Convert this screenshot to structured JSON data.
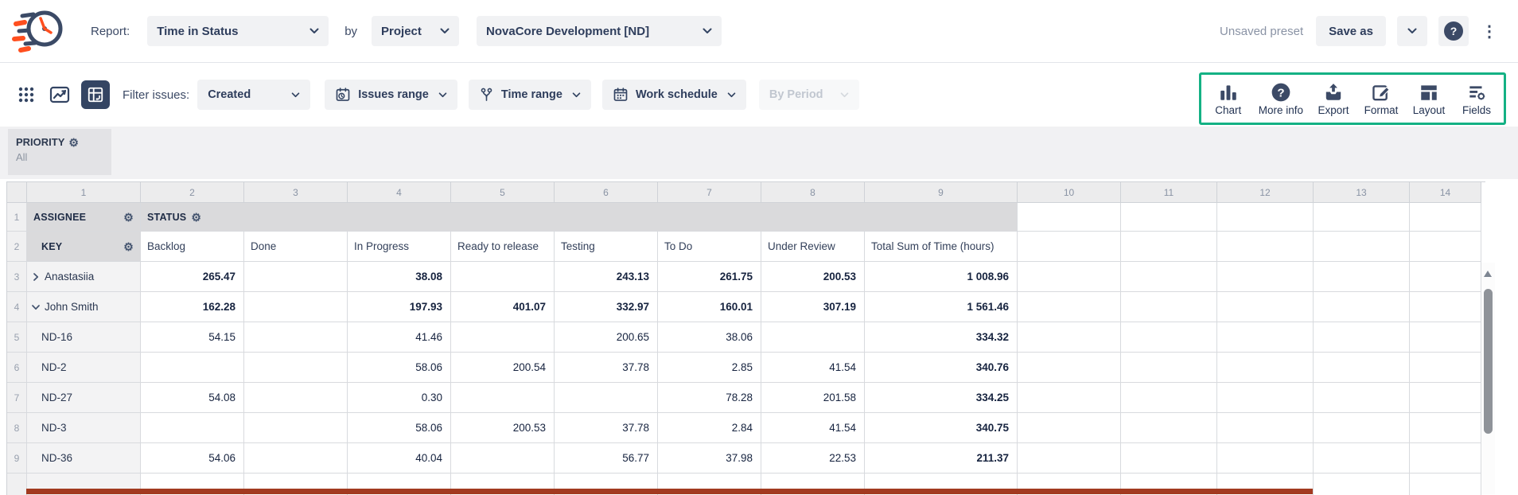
{
  "topbar": {
    "report_label": "Report:",
    "report_type_value": "Time in Status",
    "by_label": "by",
    "group_by_value": "Project",
    "project_value": "NovaCore Development [ND]",
    "preset_status": "Unsaved preset",
    "save_as_label": "Save as"
  },
  "toolbar": {
    "filter_label": "Filter issues:",
    "filter_value": "Created",
    "issues_range_label": "Issues range",
    "time_range_label": "Time range",
    "work_schedule_label": "Work schedule",
    "by_period_label": "By Period",
    "highlight_color": "#14b184",
    "actions": [
      {
        "label": "Chart",
        "icon": "bar-chart-icon"
      },
      {
        "label": "More info",
        "icon": "question-circle-icon"
      },
      {
        "label": "Export",
        "icon": "export-icon"
      },
      {
        "label": "Format",
        "icon": "format-icon"
      },
      {
        "label": "Layout",
        "icon": "layout-icon"
      },
      {
        "label": "Fields",
        "icon": "fields-icon"
      }
    ]
  },
  "priority": {
    "label": "PRIORITY",
    "value": "All"
  },
  "grid": {
    "column_numbers": [
      "1",
      "2",
      "3",
      "4",
      "5",
      "6",
      "7",
      "8",
      "9",
      "10",
      "11",
      "12",
      "13",
      "14"
    ],
    "row1": {
      "assignee": "ASSIGNEE",
      "status": "STATUS"
    },
    "row2": {
      "key": "KEY",
      "columns": [
        "Backlog",
        "Done",
        "In Progress",
        "Ready to release",
        "Testing",
        "To Do",
        "Under Review",
        "Total Sum of Time (hours)"
      ]
    },
    "rows": [
      {
        "num": "3",
        "type": "group",
        "expand": "collapsed",
        "label": "Anastasiia",
        "values": [
          "265.47",
          "",
          "38.08",
          "",
          "243.13",
          "261.75",
          "200.53"
        ],
        "total": "1 008.96"
      },
      {
        "num": "4",
        "type": "group",
        "expand": "expanded",
        "label": "John Smith",
        "values": [
          "162.28",
          "",
          "197.93",
          "401.07",
          "332.97",
          "160.01",
          "307.19"
        ],
        "total": "1 561.46"
      },
      {
        "num": "5",
        "type": "issue",
        "label": "ND-16",
        "values": [
          "54.15",
          "",
          "41.46",
          "",
          "200.65",
          "38.06",
          ""
        ],
        "total": "334.32"
      },
      {
        "num": "6",
        "type": "issue",
        "label": "ND-2",
        "values": [
          "",
          "",
          "58.06",
          "200.54",
          "37.78",
          "2.85",
          "41.54"
        ],
        "total": "340.76"
      },
      {
        "num": "7",
        "type": "issue",
        "label": "ND-27",
        "values": [
          "54.08",
          "",
          "0.30",
          "",
          "",
          "78.28",
          "201.58"
        ],
        "total": "334.25"
      },
      {
        "num": "8",
        "type": "issue",
        "label": "ND-3",
        "values": [
          "",
          "",
          "58.06",
          "200.53",
          "37.78",
          "2.84",
          "41.54"
        ],
        "total": "340.75"
      },
      {
        "num": "9",
        "type": "issue",
        "label": "ND-36",
        "values": [
          "54.06",
          "",
          "40.04",
          "",
          "56.77",
          "37.98",
          "22.53"
        ],
        "total": "211.37"
      }
    ]
  }
}
